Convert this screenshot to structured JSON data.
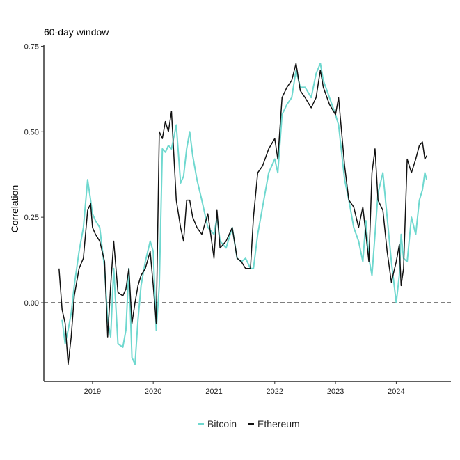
{
  "chart_data": {
    "type": "line",
    "title": "60-day window",
    "xlabel": "",
    "ylabel": "Correlation",
    "xlim": [
      2018.2,
      2024.9
    ],
    "ylim": [
      -0.23,
      0.755
    ],
    "x_ticks": [
      2019,
      2020,
      2021,
      2022,
      2023,
      2024
    ],
    "x_tick_labels": [
      "2019",
      "2020",
      "2021",
      "2022",
      "2023",
      "2024"
    ],
    "y_ticks": [
      0.0,
      0.25,
      0.5,
      0.75
    ],
    "y_tick_labels": [
      "0.00",
      "0.25",
      "0.50",
      "0.75"
    ],
    "reference_line": {
      "y": 0.0,
      "style": "dashed"
    },
    "grid": false,
    "legend_position": "bottom",
    "series": [
      {
        "name": "Bitcoin",
        "color": "#6fd8cf",
        "x": [
          2018.5,
          2018.55,
          2018.6,
          2018.65,
          2018.7,
          2018.78,
          2018.85,
          2018.92,
          2018.97,
          2019.0,
          2019.05,
          2019.12,
          2019.2,
          2019.25,
          2019.3,
          2019.35,
          2019.42,
          2019.5,
          2019.55,
          2019.6,
          2019.65,
          2019.7,
          2019.75,
          2019.8,
          2019.87,
          2019.95,
          2020.0,
          2020.05,
          2020.1,
          2020.15,
          2020.2,
          2020.25,
          2020.3,
          2020.38,
          2020.45,
          2020.5,
          2020.55,
          2020.6,
          2020.65,
          2020.72,
          2020.8,
          2020.9,
          2021.0,
          2021.05,
          2021.1,
          2021.2,
          2021.3,
          2021.38,
          2021.45,
          2021.52,
          2021.6,
          2021.65,
          2021.72,
          2021.8,
          2021.9,
          2022.0,
          2022.05,
          2022.12,
          2022.2,
          2022.28,
          2022.35,
          2022.42,
          2022.5,
          2022.6,
          2022.68,
          2022.75,
          2022.8,
          2022.9,
          2023.0,
          2023.05,
          2023.15,
          2023.22,
          2023.3,
          2023.38,
          2023.45,
          2023.5,
          2023.55,
          2023.6,
          2023.65,
          2023.7,
          2023.78,
          2023.85,
          2023.92,
          2024.0,
          2024.05,
          2024.08,
          2024.12,
          2024.18,
          2024.25,
          2024.32,
          2024.38,
          2024.43,
          2024.47,
          2024.5
        ],
        "values": [
          -0.05,
          -0.12,
          -0.08,
          -0.03,
          0.05,
          0.15,
          0.22,
          0.36,
          0.3,
          0.26,
          0.24,
          0.22,
          0.1,
          -0.05,
          -0.1,
          0.1,
          -0.12,
          -0.13,
          -0.08,
          0.1,
          -0.16,
          -0.18,
          -0.05,
          0.05,
          0.12,
          0.18,
          0.15,
          -0.08,
          0.05,
          0.45,
          0.44,
          0.46,
          0.45,
          0.52,
          0.35,
          0.37,
          0.45,
          0.5,
          0.43,
          0.36,
          0.3,
          0.22,
          0.2,
          0.25,
          0.18,
          0.16,
          0.22,
          0.13,
          0.12,
          0.13,
          0.1,
          0.1,
          0.2,
          0.28,
          0.38,
          0.42,
          0.38,
          0.55,
          0.58,
          0.6,
          0.68,
          0.63,
          0.63,
          0.6,
          0.67,
          0.7,
          0.65,
          0.6,
          0.55,
          0.52,
          0.36,
          0.3,
          0.22,
          0.18,
          0.12,
          0.24,
          0.13,
          0.08,
          0.2,
          0.32,
          0.38,
          0.25,
          0.12,
          0.0,
          0.08,
          0.2,
          0.13,
          0.12,
          0.25,
          0.2,
          0.3,
          0.33,
          0.38,
          0.36
        ]
      },
      {
        "name": "Ethereum",
        "color": "#111111",
        "x": [
          2018.45,
          2018.5,
          2018.55,
          2018.6,
          2018.65,
          2018.7,
          2018.78,
          2018.85,
          2018.92,
          2018.97,
          2019.0,
          2019.05,
          2019.12,
          2019.2,
          2019.25,
          2019.3,
          2019.35,
          2019.42,
          2019.5,
          2019.55,
          2019.6,
          2019.65,
          2019.7,
          2019.75,
          2019.8,
          2019.87,
          2019.95,
          2020.0,
          2020.05,
          2020.1,
          2020.15,
          2020.2,
          2020.25,
          2020.3,
          2020.38,
          2020.45,
          2020.5,
          2020.55,
          2020.6,
          2020.65,
          2020.72,
          2020.8,
          2020.9,
          2021.0,
          2021.05,
          2021.1,
          2021.2,
          2021.3,
          2021.38,
          2021.45,
          2021.52,
          2021.6,
          2021.65,
          2021.72,
          2021.8,
          2021.9,
          2022.0,
          2022.05,
          2022.12,
          2022.2,
          2022.28,
          2022.35,
          2022.42,
          2022.5,
          2022.6,
          2022.68,
          2022.75,
          2022.8,
          2022.9,
          2023.0,
          2023.05,
          2023.15,
          2023.22,
          2023.3,
          2023.38,
          2023.45,
          2023.5,
          2023.55,
          2023.6,
          2023.65,
          2023.7,
          2023.78,
          2023.85,
          2023.92,
          2024.0,
          2024.05,
          2024.08,
          2024.12,
          2024.18,
          2024.25,
          2024.32,
          2024.38,
          2024.43,
          2024.47,
          2024.5
        ],
        "values": [
          0.1,
          -0.02,
          -0.06,
          -0.18,
          -0.1,
          0.02,
          0.1,
          0.13,
          0.27,
          0.29,
          0.22,
          0.2,
          0.18,
          0.12,
          -0.1,
          0.05,
          0.18,
          0.03,
          0.02,
          0.04,
          0.1,
          -0.06,
          0.0,
          0.05,
          0.08,
          0.1,
          0.15,
          0.05,
          -0.06,
          0.5,
          0.48,
          0.53,
          0.5,
          0.56,
          0.3,
          0.22,
          0.18,
          0.3,
          0.3,
          0.25,
          0.22,
          0.2,
          0.26,
          0.13,
          0.27,
          0.16,
          0.18,
          0.22,
          0.13,
          0.12,
          0.1,
          0.1,
          0.25,
          0.38,
          0.4,
          0.45,
          0.48,
          0.42,
          0.6,
          0.63,
          0.65,
          0.7,
          0.62,
          0.6,
          0.57,
          0.6,
          0.68,
          0.63,
          0.58,
          0.55,
          0.6,
          0.4,
          0.3,
          0.28,
          0.22,
          0.28,
          0.2,
          0.12,
          0.38,
          0.45,
          0.3,
          0.27,
          0.15,
          0.06,
          0.12,
          0.17,
          0.05,
          0.1,
          0.42,
          0.38,
          0.42,
          0.46,
          0.47,
          0.42,
          0.43
        ]
      }
    ]
  }
}
